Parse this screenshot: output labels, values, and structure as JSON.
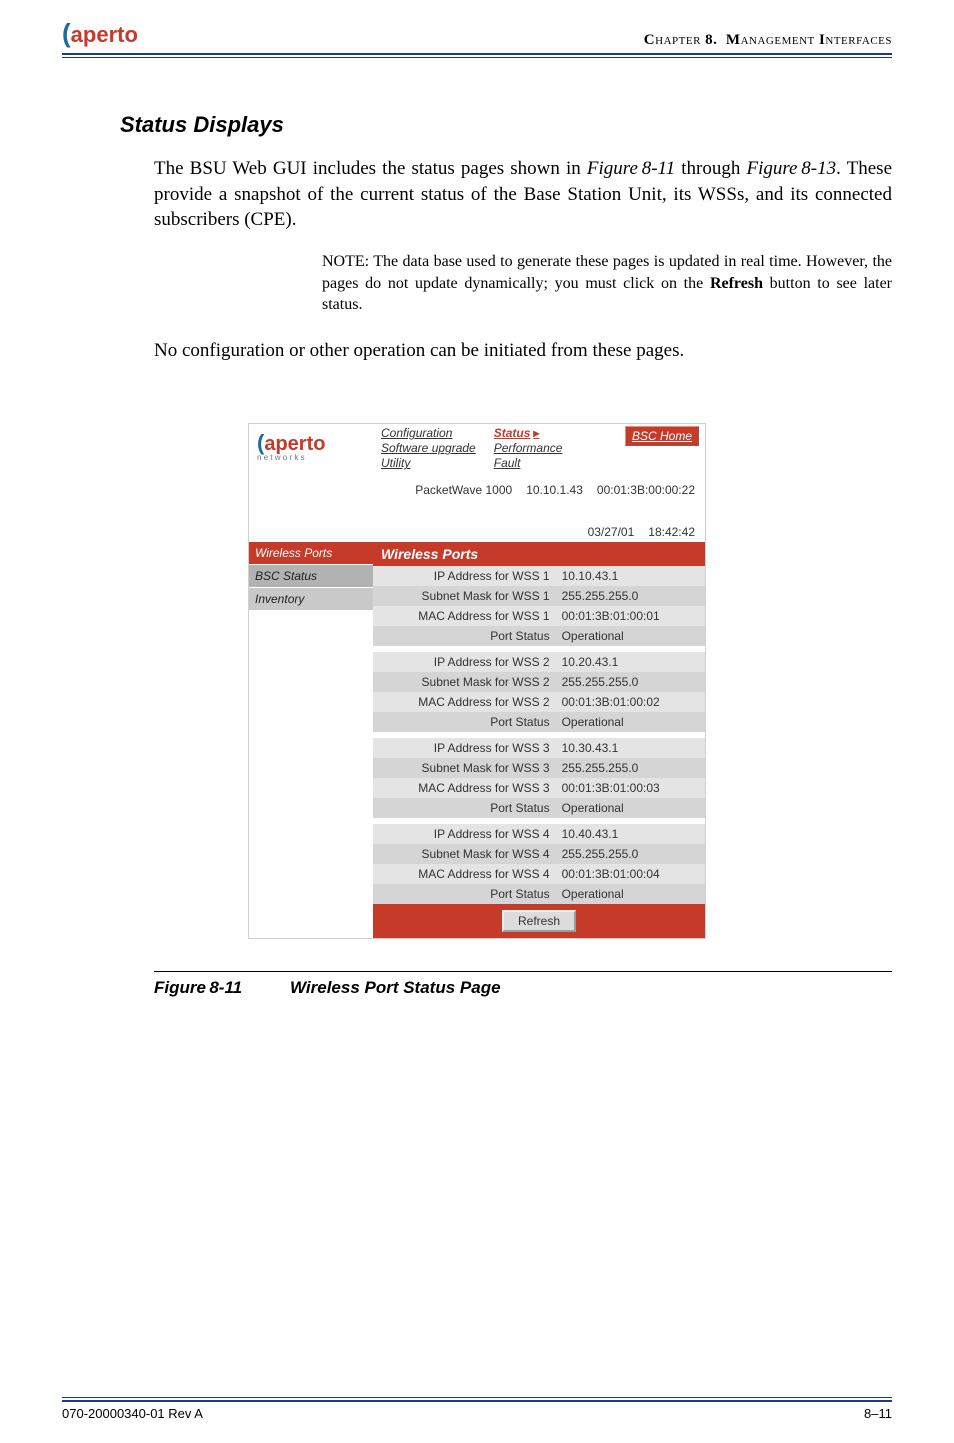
{
  "header": {
    "logo_text": "aperto",
    "chapter_label": "Chapter 8.  Management Interfaces"
  },
  "section": {
    "title": "Status Displays",
    "para1_a": "The BSU Web GUI includes the status pages shown in ",
    "para1_ref1": "Figure 8-11",
    "para1_b": " through ",
    "para1_ref2": "Figure 8-13",
    "para1_c": ". These provide a snapshot of the current status of the Base Station Unit, its WSSs, and its connected subscribers (CPE).",
    "note_lead": "NOTE:  ",
    "note_a": "The data base used to generate these pages is updated in real time. However, the pages do not update dynamically; you must click on the ",
    "note_bold": "Refresh",
    "note_b": " button to see later status.",
    "para2": "No configuration or other operation can be initiated from these pages."
  },
  "screenshot": {
    "logo_text": "aperto",
    "logo_sub": "n e t w o r k s",
    "topnav_col1": [
      "Configuration",
      "Software upgrade",
      "Utility"
    ],
    "topnav_col2": [
      "Status",
      "Performance",
      "Fault"
    ],
    "bsc_home": "BSC Home",
    "info": {
      "device": "PacketWave 1000",
      "ip": "10.10.1.43",
      "mac": "00:01:3B:00:00:22",
      "date": "03/27/01",
      "time": "18:42:42"
    },
    "sidebar": [
      {
        "label": "Wireless Ports",
        "cls": "red"
      },
      {
        "label": "BSC Status",
        "cls": "greyA"
      },
      {
        "label": "Inventory",
        "cls": "greyB"
      }
    ],
    "panel_title": "Wireless Ports",
    "groups": [
      [
        {
          "label": "IP Address for WSS 1",
          "value": "10.10.43.1"
        },
        {
          "label": "Subnet Mask for WSS 1",
          "value": "255.255.255.0"
        },
        {
          "label": "MAC Address for WSS 1",
          "value": "00:01:3B:01:00:01"
        },
        {
          "label": "Port Status",
          "value": "Operational"
        }
      ],
      [
        {
          "label": "IP Address for WSS 2",
          "value": "10.20.43.1"
        },
        {
          "label": "Subnet Mask for WSS 2",
          "value": "255.255.255.0"
        },
        {
          "label": "MAC Address for WSS 2",
          "value": "00:01:3B:01:00:02"
        },
        {
          "label": "Port Status",
          "value": "Operational"
        }
      ],
      [
        {
          "label": "IP Address for WSS 3",
          "value": "10.30.43.1"
        },
        {
          "label": "Subnet Mask for WSS 3",
          "value": "255.255.255.0"
        },
        {
          "label": "MAC Address for WSS 3",
          "value": "00:01:3B:01:00:03"
        },
        {
          "label": "Port Status",
          "value": "Operational"
        }
      ],
      [
        {
          "label": "IP Address for WSS 4",
          "value": "10.40.43.1"
        },
        {
          "label": "Subnet Mask for WSS 4",
          "value": "255.255.255.0"
        },
        {
          "label": "MAC Address for WSS 4",
          "value": "00:01:3B:01:00:04"
        },
        {
          "label": "Port Status",
          "value": "Operational"
        }
      ]
    ],
    "refresh_label": "Refresh"
  },
  "figure": {
    "number": "Figure 8-11",
    "title": "Wireless Port Status Page"
  },
  "footer": {
    "left": "070-20000340-01 Rev A",
    "right": "8–11"
  }
}
